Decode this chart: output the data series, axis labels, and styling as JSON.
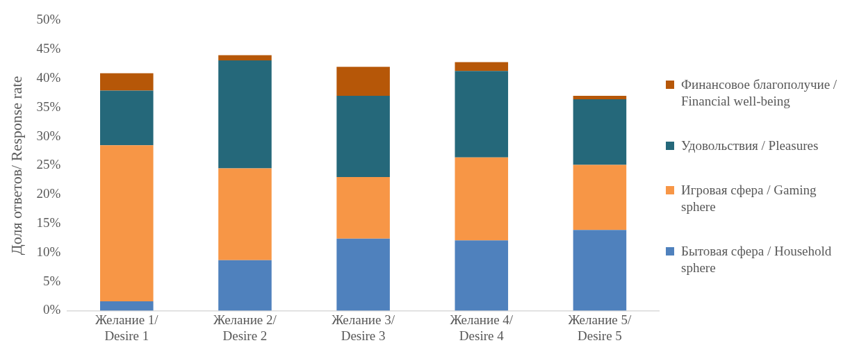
{
  "chart_data": {
    "type": "bar",
    "stacked": true,
    "ylabel": "Доля ответов/ Response rate",
    "categories": [
      "Желание 1/ Desire 1",
      "Желание 2/ Desire 2",
      "Желание 3/ Desire 3",
      "Желание 4/ Desire 4",
      "Желание 5/ Desire 5"
    ],
    "series": [
      {
        "name": "Бытовая сфера / Household sphere",
        "color": "#4f81bd",
        "values": [
          1.6,
          8.7,
          12.4,
          12.1,
          13.9
        ]
      },
      {
        "name": "Игровая сфера / Gaming sphere",
        "color": "#f79646",
        "values": [
          26.9,
          15.8,
          10.6,
          14.3,
          11.2
        ]
      },
      {
        "name": "Удовольствия / Pleasures",
        "color": "#25687a",
        "values": [
          9.4,
          18.6,
          14.0,
          14.9,
          11.3
        ]
      },
      {
        "name": "Финансовое благополучие / Financial well-being",
        "color": "#b65708",
        "values": [
          3.0,
          0.9,
          5.0,
          1.5,
          0.6
        ]
      }
    ],
    "ylim": [
      0,
      50
    ],
    "yticks": [
      {
        "value": 0,
        "label": "0%"
      },
      {
        "value": 5,
        "label": "5%"
      },
      {
        "value": 10,
        "label": "10%"
      },
      {
        "value": 15,
        "label": "15%"
      },
      {
        "value": 20,
        "label": "20%"
      },
      {
        "value": 25,
        "label": "25%"
      },
      {
        "value": 30,
        "label": "30%"
      },
      {
        "value": 35,
        "label": "35%"
      },
      {
        "value": 40,
        "label": "40%"
      },
      {
        "value": 45,
        "label": "45%"
      },
      {
        "value": 50,
        "label": "50%"
      }
    ],
    "grid": false,
    "legend": "right"
  }
}
